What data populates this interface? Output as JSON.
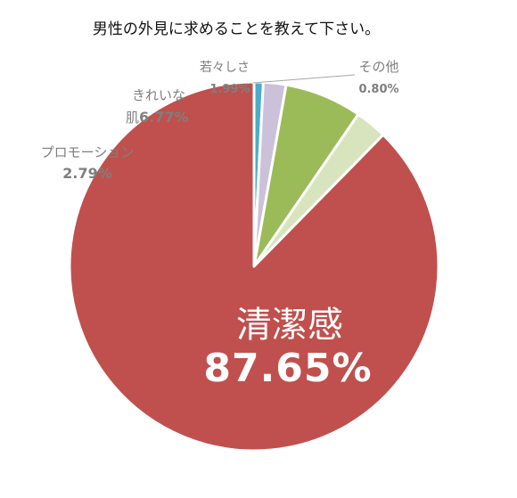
{
  "chart_data": {
    "type": "pie",
    "title": "男性の外見に求めることを教えて下さい。",
    "slices": [
      {
        "label": "清潔感",
        "value": 87.65,
        "value_label": "87.65%",
        "color": "#c0504d"
      },
      {
        "label": "プロモーション",
        "value": 2.79,
        "value_label": "2.79%",
        "color": "#d7e4bd"
      },
      {
        "label": "きれいな肌",
        "value": 6.77,
        "value_label": "6.77%",
        "color": "#9bbb59"
      },
      {
        "label": "若々しさ",
        "value": 1.99,
        "value_label": "1.99%",
        "color": "#ccc1da"
      },
      {
        "label": "その他",
        "value": 0.8,
        "value_label": "0.80%",
        "color": "#4bacc6"
      }
    ],
    "legend": "none"
  }
}
